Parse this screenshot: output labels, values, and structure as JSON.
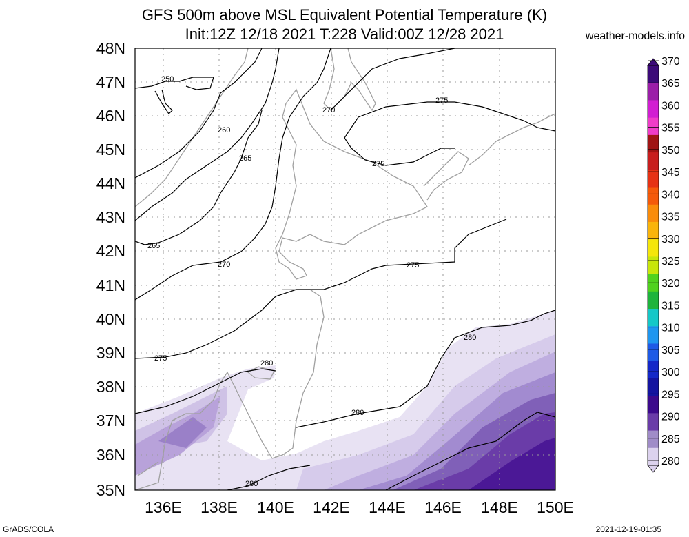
{
  "title": {
    "line1": "GFS 500m above MSL Equivalent Potential Temperature (K)",
    "line2": "Init:12Z 12/18 2021 T:228 Valid:00Z 12/28 2021"
  },
  "site": "weather-models.info",
  "footer": {
    "left": "GrADS/COLA",
    "right": "2021-12-19-01:35"
  },
  "map": {
    "lat_labels": [
      "48N",
      "47N",
      "46N",
      "45N",
      "44N",
      "43N",
      "42N",
      "41N",
      "40N",
      "39N",
      "38N",
      "37N",
      "36N",
      "35N"
    ],
    "lon_labels": [
      "136E",
      "138E",
      "140E",
      "142E",
      "144E",
      "146E",
      "148E",
      "150E"
    ],
    "contour_labels": [
      {
        "text": "250"
      },
      {
        "text": "260"
      },
      {
        "text": "265"
      },
      {
        "text": "265"
      },
      {
        "text": "270"
      },
      {
        "text": "270"
      },
      {
        "text": "275"
      },
      {
        "text": "275"
      },
      {
        "text": "275"
      },
      {
        "text": "275"
      },
      {
        "text": "280"
      },
      {
        "text": "280"
      },
      {
        "text": "280"
      },
      {
        "text": "280"
      }
    ]
  },
  "colorbar": {
    "labels": [
      "370",
      "365",
      "360",
      "355",
      "350",
      "345",
      "340",
      "335",
      "330",
      "325",
      "320",
      "315",
      "310",
      "305",
      "300",
      "295",
      "290",
      "285",
      "280"
    ],
    "colors": [
      "#3c0a78",
      "#9b1ea8",
      "#d21ed2",
      "#f03cc8",
      "#a01414",
      "#c81e1e",
      "#e63214",
      "#f55a0a",
      "#fa8c0a",
      "#fab40a",
      "#f5e60a",
      "#c8e60a",
      "#50d21e",
      "#1eb43c",
      "#14c8c8",
      "#1e96f0",
      "#1e5ae6",
      "#1428c8",
      "#1414a0",
      "#3c0a8c",
      "#6a3ca8",
      "#a08cc8",
      "#dcd2ee"
    ]
  },
  "colors": {
    "shade_light": "#e6e0f2",
    "shade_mid": "#c8b8e2",
    "shade_dark": "#9a80c8",
    "shade_deep": "#6a3ca8",
    "shade_deepest": "#4b1896",
    "coast": "#a0a0a0",
    "grid": "#9a9a9a"
  }
}
